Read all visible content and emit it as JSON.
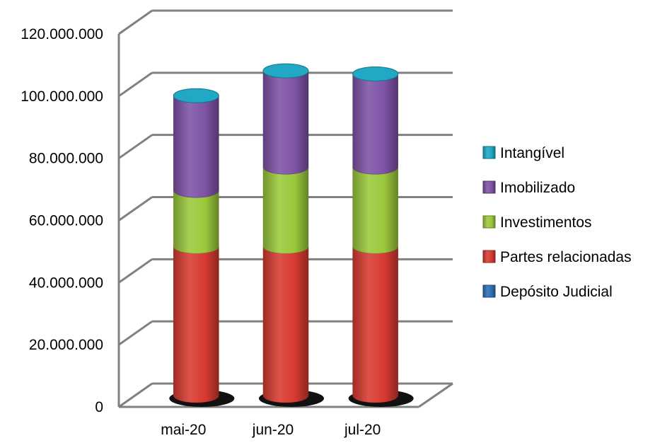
{
  "chart_data": {
    "type": "bar",
    "stacked": true,
    "style": "3d-cylinder",
    "categories": [
      "mai-20",
      "jun-20",
      "jul-20"
    ],
    "series": [
      {
        "name": "Depósito Judicial",
        "color": "#2E6FB5",
        "values": [
          0,
          0,
          0
        ]
      },
      {
        "name": "Partes relacionadas",
        "color": "#D73A31",
        "values": [
          48000000,
          48000000,
          48000000
        ]
      },
      {
        "name": "Investimentos",
        "color": "#9BC83C",
        "values": [
          18000000,
          25500000,
          25500000
        ]
      },
      {
        "name": "Imobilizado",
        "color": "#7E53A6",
        "values": [
          30500000,
          31000000,
          30000000
        ]
      },
      {
        "name": "Intangível",
        "color": "#20A8C4",
        "values": [
          0,
          0,
          0
        ]
      }
    ],
    "y_ticks": [
      "0",
      "20.000.000",
      "40.000.000",
      "60.000.000",
      "80.000.000",
      "100.000.000",
      "120.000.000"
    ],
    "ylim": [
      0,
      120000000
    ],
    "grid": true,
    "legend_position": "right",
    "title": "",
    "xlabel": "",
    "ylabel": ""
  }
}
